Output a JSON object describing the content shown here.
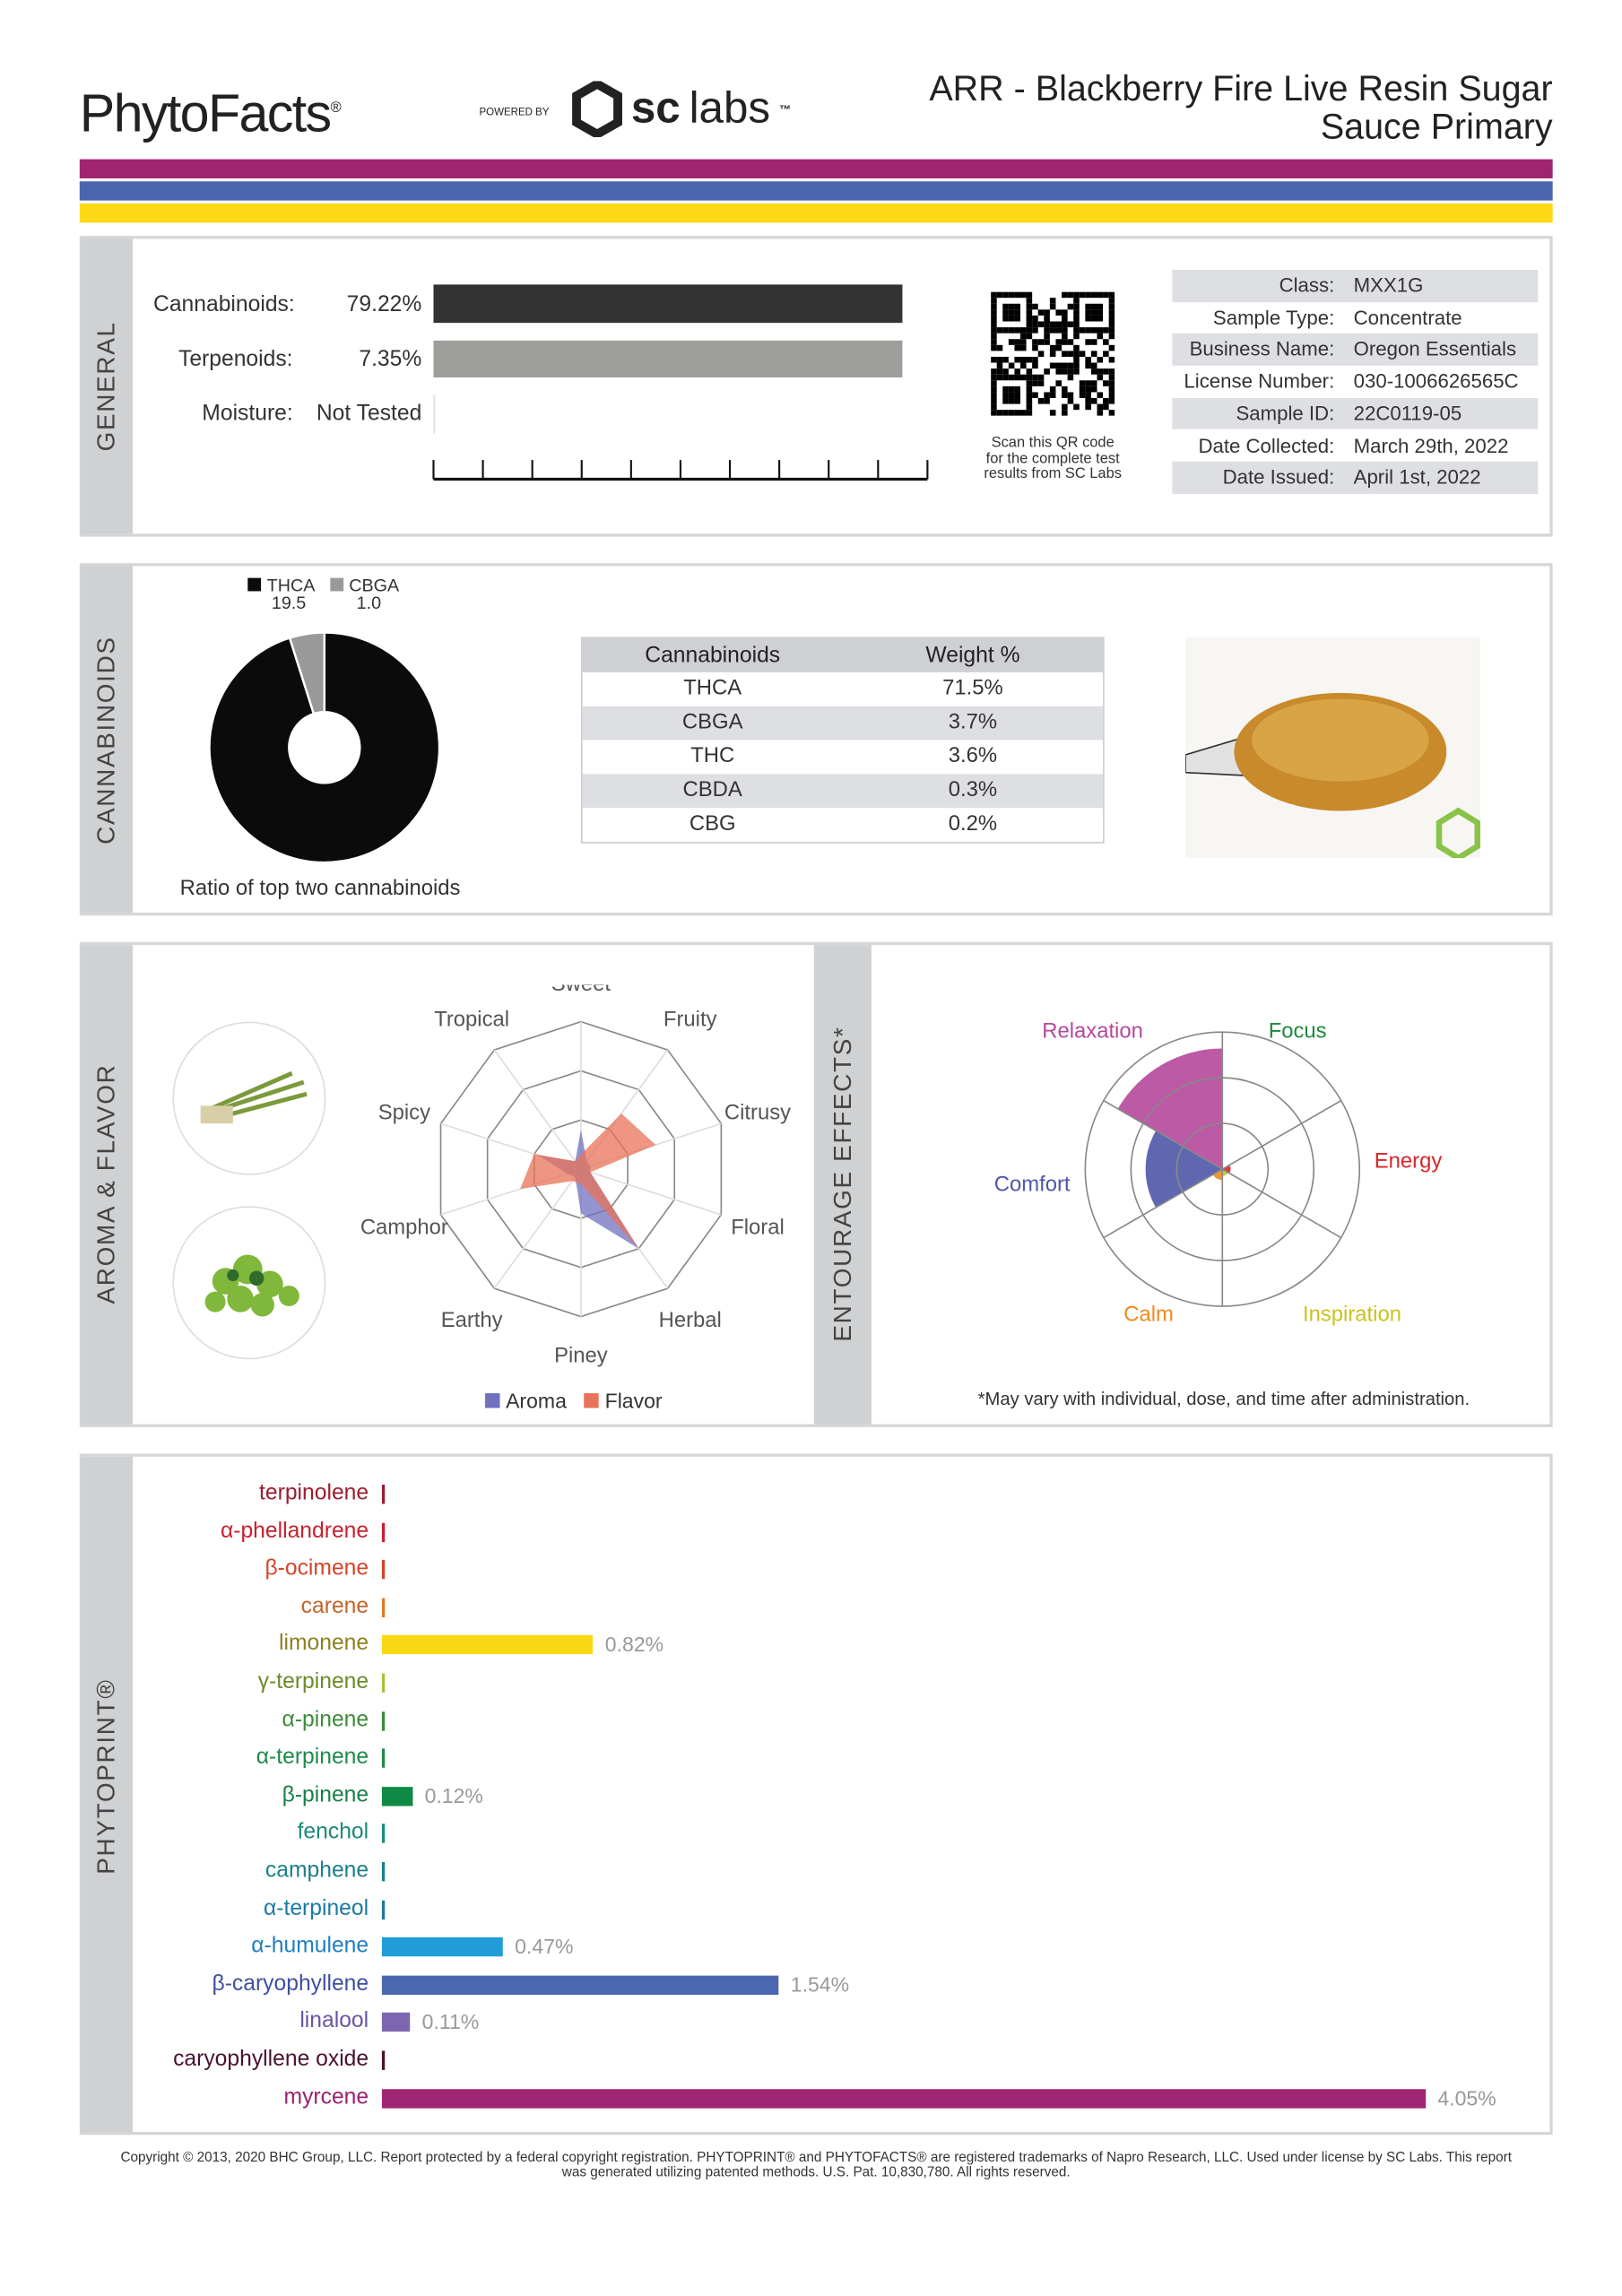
{
  "header": {
    "logo": "PhytoFacts",
    "logo_mark": "®",
    "powered_by": "POWERED BY",
    "sc_bold": "sc",
    "sc_light": "labs",
    "sc_tm": "™",
    "title_line1": "ARR - Blackberry Fire Live Resin Sugar",
    "title_line2": "Sauce Primary"
  },
  "stripes": [
    "#a0256f",
    "#4b65ae",
    "#fbd914"
  ],
  "general": {
    "section_label": "GENERAL",
    "cannabinoids_label": "Cannabinoids:",
    "cannabinoids_value": "79.22%",
    "cannabinoids_fill": 0.95,
    "terpenoids_label": "Terpenoids:",
    "terpenoids_value": "7.35%",
    "terpenoids_fill": 0.95,
    "moisture_label": "Moisture:",
    "moisture_value": "Not Tested",
    "qr_caption": [
      "Scan this QR code",
      "for the complete test",
      "results from SC Labs"
    ],
    "info": [
      {
        "k": "Class:",
        "v": "MXX1G"
      },
      {
        "k": "Sample Type:",
        "v": "Concentrate"
      },
      {
        "k": "Business Name:",
        "v": "Oregon Essentials"
      },
      {
        "k": "License Number:",
        "v": "030-1006626565C"
      },
      {
        "k": "Sample ID:",
        "v": "22C0119-05"
      },
      {
        "k": "Date Collected:",
        "v": "March 29th, 2022"
      },
      {
        "k": "Date Issued:",
        "v": "April 1st, 2022"
      }
    ]
  },
  "cannabinoids": {
    "section_label": "CANNABINOIDS",
    "legend": [
      {
        "name": "THCA",
        "value": "19.5",
        "color": "#0b0b0b"
      },
      {
        "name": "CBGA",
        "value": "1.0",
        "color": "#999999"
      }
    ],
    "ratio_caption": "Ratio of top two cannabinoids",
    "table_header": [
      "Cannabinoids",
      "Weight %"
    ],
    "rows": [
      [
        "THCA",
        "71.5%"
      ],
      [
        "CBGA",
        "3.7%"
      ],
      [
        "THC",
        "3.6%"
      ],
      [
        "CBDA",
        "0.3%"
      ],
      [
        "CBG",
        "0.2%"
      ]
    ]
  },
  "aroma": {
    "section_label": "AROMA & FLAVOR",
    "legend_aroma": "Aroma",
    "legend_flavor": "Flavor",
    "aroma_color": "#6f70c0",
    "flavor_color": "#e8735a"
  },
  "entourage": {
    "section_label": "ENTOURAGE EFFECTS*",
    "footnote": "*May vary with individual, dose, and time after administration."
  },
  "chart_data": [
    {
      "type": "radar",
      "axes": [
        "Sweet",
        "Fruity",
        "Citrusy",
        "Floral",
        "Herbal",
        "Piney",
        "Earthy",
        "Camphor",
        "Spicy",
        "Tropical"
      ],
      "range": [
        0,
        3
      ],
      "series": [
        {
          "name": "Aroma",
          "values": [
            0.8,
            0.2,
            0.2,
            0.2,
            2.0,
            0.9,
            0.2,
            0.3,
            0.9,
            0.2
          ]
        },
        {
          "name": "Flavor",
          "values": [
            0.3,
            1.4,
            1.6,
            0.2,
            2.0,
            0.3,
            0.3,
            1.3,
            1.0,
            0.2
          ]
        }
      ]
    },
    {
      "type": "polar",
      "categories": [
        "Relaxation",
        "Focus",
        "Energy",
        "Inspiration",
        "Calm",
        "Comfort"
      ],
      "values": [
        0.88,
        0.0,
        0.06,
        0.05,
        0.08,
        0.56
      ],
      "range": [
        0,
        1
      ],
      "colors": [
        "#b5489c",
        "#1e8a3e",
        "#d8262b",
        "#c9c21e",
        "#f08a1c",
        "#4f56a8"
      ]
    },
    {
      "type": "bar",
      "title": "PHYTOPRINT®",
      "unit": "%",
      "xlim": [
        0,
        4.05
      ],
      "bars": [
        {
          "name": "terpinolene",
          "value": 0,
          "label": "",
          "color": "#9b1c2e",
          "bar": "#9b1c2e"
        },
        {
          "name": "α-phellandrene",
          "value": 0,
          "label": "",
          "color": "#c8202f",
          "bar": "#c8202f"
        },
        {
          "name": "β-ocimene",
          "value": 0,
          "label": "",
          "color": "#d3452a",
          "bar": "#d3452a"
        },
        {
          "name": "carene",
          "value": 0,
          "label": "",
          "color": "#c0652a",
          "bar": "#e07a2a"
        },
        {
          "name": "limonene",
          "value": 0.82,
          "label": "0.82%",
          "color": "#8f7f1f",
          "bar": "#f9d814"
        },
        {
          "name": "γ-terpinene",
          "value": 0,
          "label": "",
          "color": "#6d8a2a",
          "bar": "#a8c23a"
        },
        {
          "name": "α-pinene",
          "value": 0,
          "label": "",
          "color": "#3d8a3a",
          "bar": "#3d8a3a"
        },
        {
          "name": "α-terpinene",
          "value": 0,
          "label": "",
          "color": "#1f8a4a",
          "bar": "#1f8a4a"
        },
        {
          "name": "β-pinene",
          "value": 0.12,
          "label": "0.12%",
          "color": "#178048",
          "bar": "#0e8a45"
        },
        {
          "name": "fenchol",
          "value": 0,
          "label": "",
          "color": "#1b8a7a",
          "bar": "#1b8a7a"
        },
        {
          "name": "camphene",
          "value": 0,
          "label": "",
          "color": "#1a7f8a",
          "bar": "#1a7f8a"
        },
        {
          "name": "α-terpineol",
          "value": 0,
          "label": "",
          "color": "#1c7aa0",
          "bar": "#1c7aa0"
        },
        {
          "name": "α-humulene",
          "value": 0.47,
          "label": "0.47%",
          "color": "#1f7fc0",
          "bar": "#229cd8"
        },
        {
          "name": "β-caryophyllene",
          "value": 1.54,
          "label": "1.54%",
          "color": "#3d4fa0",
          "bar": "#4c67b1"
        },
        {
          "name": "linalool",
          "value": 0.11,
          "label": "0.11%",
          "color": "#6b54a5",
          "bar": "#7d66b0"
        },
        {
          "name": "caryophyllene oxide",
          "value": 0,
          "label": "",
          "color": "#4a1230",
          "bar": "#4a1230"
        },
        {
          "name": "myrcene",
          "value": 4.05,
          "label": "4.05%",
          "color": "#9a2170",
          "bar": "#a02673"
        }
      ]
    }
  ],
  "footer": {
    "line1": "Copyright © 2013, 2020 BHC Group, LLC. Report protected by a federal copyright registration. PHYTOPRINT® and PHYTOFACTS® are registered trademarks of Napro Research, LLC. Used under license by SC Labs. This report",
    "line2": "was generated utilizing patented methods. U.S. Pat. 10,830,780. All rights reserved."
  }
}
